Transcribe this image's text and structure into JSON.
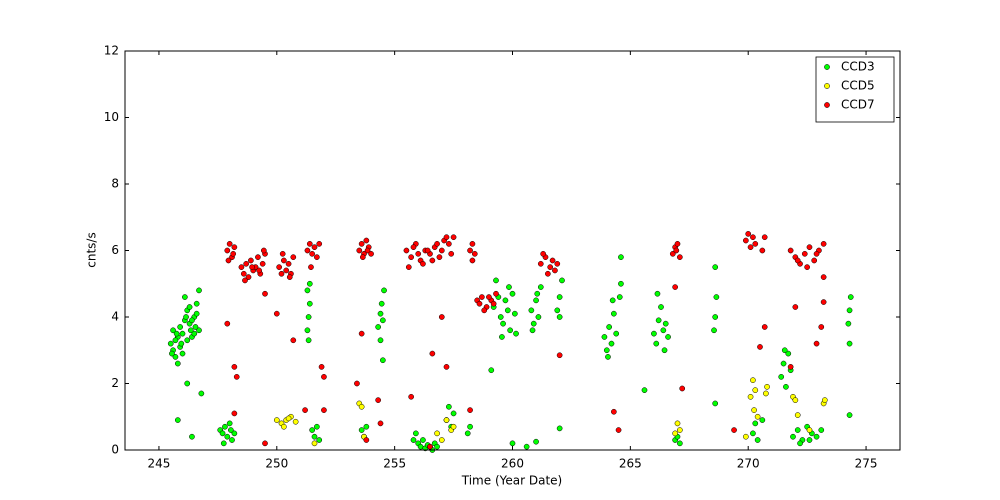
{
  "chart_data": {
    "type": "scatter",
    "xlabel": "Time (Year Date)",
    "ylabel": "cnts/s",
    "xlim": [
      243.56,
      276.44
    ],
    "xticks": [
      245,
      250,
      255,
      260,
      265,
      270,
      275
    ],
    "ylim": [
      0,
      12
    ],
    "yticks": [
      0,
      2,
      4,
      6,
      8,
      10,
      12
    ],
    "grid": false,
    "legend": "upper right",
    "series": [
      {
        "name": "CCD3",
        "color": "#00ff00",
        "x": [
          245.5,
          245.6,
          245.7,
          245.8,
          245.9,
          246.0,
          245.6,
          245.7,
          245.8,
          245.9,
          246.0,
          246.1,
          246.2,
          246.3,
          246.4,
          246.5,
          246.6,
          246.7,
          246.1,
          246.2,
          246.3,
          246.4,
          246.5,
          246.6,
          245.55,
          245.75,
          245.95,
          246.15,
          246.35,
          246.55,
          245.8,
          246.2,
          246.4,
          246.8,
          246.7,
          247.6,
          247.7,
          247.8,
          247.9,
          248.0,
          248.1,
          248.2,
          247.75,
          248.05,
          251.3,
          251.35,
          251.4,
          251.3,
          251.35,
          251.4,
          251.5,
          251.6,
          251.7,
          251.8,
          254.3,
          254.4,
          254.45,
          254.5,
          254.55,
          254.4,
          254.5,
          253.6,
          253.7,
          253.8,
          255.8,
          255.9,
          256.0,
          256.1,
          256.2,
          256.3,
          256.4,
          256.5,
          256.6,
          256.7,
          256.8,
          257.2,
          257.3,
          257.4,
          257.5,
          258.1,
          258.2,
          259.2,
          259.4,
          259.5,
          259.6,
          259.7,
          259.8,
          259.9,
          260.0,
          260.1,
          259.3,
          259.55,
          259.85,
          260.15,
          260.8,
          260.9,
          261.0,
          261.1,
          261.2,
          260.85,
          261.05,
          261.9,
          262.0,
          262.1,
          262.0,
          263.9,
          264.0,
          264.1,
          264.2,
          264.3,
          264.4,
          264.05,
          264.25,
          264.55,
          264.6,
          264.6,
          266.0,
          266.1,
          266.2,
          266.3,
          266.4,
          266.5,
          266.6,
          266.15,
          266.45,
          266.9,
          267.0,
          267.1,
          268.55,
          268.6,
          268.65,
          268.6,
          270.2,
          270.3,
          270.4,
          270.6,
          271.4,
          271.5,
          271.6,
          271.7,
          271.8,
          271.55,
          271.9,
          272.1,
          272.3,
          272.5,
          272.7,
          272.9,
          273.1,
          272.2,
          272.6,
          274.25,
          274.3,
          274.35,
          274.3,
          274.3,
          259.1,
          260.0,
          260.6,
          261.0,
          262.0,
          268.6,
          265.6
        ],
        "values": [
          3.2,
          3.0,
          2.8,
          3.4,
          3.1,
          2.9,
          3.6,
          3.3,
          2.6,
          3.7,
          3.5,
          3.9,
          4.2,
          3.8,
          3.4,
          4.0,
          4.4,
          3.6,
          4.6,
          3.3,
          4.3,
          3.9,
          3.5,
          4.1,
          2.9,
          3.5,
          3.2,
          4.0,
          3.6,
          3.7,
          0.9,
          2.0,
          0.4,
          1.7,
          4.8,
          0.6,
          0.5,
          0.7,
          0.4,
          0.8,
          0.3,
          0.5,
          0.2,
          0.6,
          3.6,
          4.0,
          4.4,
          4.8,
          3.3,
          5.0,
          0.6,
          0.4,
          0.7,
          0.3,
          3.7,
          4.1,
          4.4,
          3.9,
          4.8,
          3.3,
          2.7,
          0.6,
          0.4,
          0.7,
          0.3,
          0.5,
          0.2,
          0.1,
          0.3,
          0.05,
          0.15,
          0.1,
          0.0,
          0.2,
          0.1,
          0.9,
          1.3,
          0.7,
          1.1,
          0.5,
          0.7,
          4.3,
          4.6,
          4.0,
          3.8,
          4.5,
          4.2,
          3.6,
          4.7,
          4.1,
          5.1,
          3.4,
          4.9,
          3.5,
          4.2,
          3.8,
          4.5,
          4.0,
          4.9,
          3.6,
          4.7,
          4.2,
          4.6,
          5.1,
          4.0,
          3.4,
          3.0,
          3.7,
          3.2,
          4.1,
          3.5,
          2.8,
          4.5,
          4.6,
          5.0,
          5.8,
          3.5,
          3.2,
          3.9,
          4.3,
          3.6,
          3.8,
          3.4,
          4.7,
          3.0,
          0.3,
          0.4,
          0.2,
          3.6,
          4.0,
          4.6,
          5.5,
          0.5,
          0.8,
          0.3,
          0.9,
          2.2,
          2.6,
          1.9,
          2.9,
          2.4,
          3.0,
          0.4,
          0.6,
          0.3,
          0.7,
          0.5,
          0.4,
          0.6,
          0.2,
          0.3,
          3.8,
          4.2,
          4.6,
          3.2,
          1.05,
          2.4,
          0.2,
          0.1,
          0.25,
          0.65,
          1.4,
          1.8
        ]
      },
      {
        "name": "CCD5",
        "color": "#ffff00",
        "x": [
          250.0,
          250.2,
          250.4,
          250.6,
          250.8,
          250.3,
          253.5,
          253.6,
          253.7,
          256.8,
          257.0,
          257.2,
          257.4,
          257.5,
          266.9,
          267.0,
          267.1,
          270.1,
          270.2,
          270.3,
          270.8,
          271.9,
          272.0,
          273.2,
          273.25,
          272.6,
          251.6,
          270.4,
          272.1,
          250.5,
          270.25,
          270.75,
          269.9
        ],
        "values": [
          0.9,
          0.8,
          0.9,
          1.0,
          0.85,
          0.7,
          1.4,
          1.3,
          0.4,
          0.5,
          0.3,
          0.9,
          0.6,
          0.7,
          0.5,
          0.8,
          0.6,
          1.6,
          2.1,
          1.8,
          1.9,
          1.6,
          1.5,
          1.4,
          1.5,
          0.6,
          0.2,
          1.0,
          1.05,
          0.95,
          1.2,
          1.7,
          0.4
        ]
      },
      {
        "name": "CCD7",
        "color": "#ff0000",
        "x": [
          247.9,
          248.0,
          248.1,
          248.2,
          247.95,
          248.15,
          248.5,
          248.6,
          248.7,
          248.8,
          248.9,
          249.0,
          249.1,
          249.2,
          249.3,
          249.4,
          249.5,
          248.65,
          248.95,
          249.25,
          249.45,
          250.1,
          250.2,
          250.3,
          250.4,
          250.5,
          250.6,
          250.7,
          250.25,
          250.55,
          251.3,
          251.4,
          251.5,
          251.6,
          251.7,
          251.8,
          251.45,
          253.5,
          253.6,
          253.7,
          253.8,
          253.9,
          254.0,
          253.65,
          253.85,
          255.5,
          255.7,
          255.9,
          256.1,
          256.3,
          256.5,
          256.7,
          256.9,
          257.1,
          257.3,
          257.5,
          255.6,
          255.8,
          256.0,
          256.2,
          256.4,
          256.6,
          256.8,
          257.0,
          257.2,
          257.4,
          258.2,
          258.3,
          258.4,
          258.3,
          258.5,
          258.7,
          258.9,
          259.1,
          259.3,
          258.6,
          258.8,
          259.0,
          259.2,
          261.2,
          261.4,
          261.6,
          261.8,
          261.3,
          261.5,
          261.7,
          261.9,
          266.8,
          266.9,
          267.0,
          267.1,
          266.95,
          269.9,
          270.0,
          270.1,
          270.2,
          270.3,
          270.6,
          270.7,
          271.8,
          272.0,
          272.2,
          272.4,
          272.6,
          272.8,
          273.0,
          273.2,
          272.1,
          272.5,
          272.9,
          248.2,
          251.2,
          252.0,
          253.8,
          254.3,
          256.5,
          264.5,
          269.4,
          254.4,
          258.2,
          255.7,
          249.5,
          247.9,
          248.2,
          248.3,
          249.5,
          250.0,
          250.7,
          251.9,
          252.0,
          253.6,
          253.4,
          256.6,
          257.0,
          257.2,
          262.0,
          264.3,
          266.9,
          267.2,
          270.7,
          270.5,
          271.8,
          272.0,
          272.9,
          273.1,
          273.2,
          273.2
        ],
        "values": [
          6.0,
          6.2,
          5.8,
          6.1,
          5.7,
          5.9,
          5.5,
          5.3,
          5.6,
          5.2,
          5.7,
          5.4,
          5.5,
          5.8,
          5.3,
          5.6,
          5.9,
          5.1,
          5.5,
          5.4,
          6.0,
          5.5,
          5.3,
          5.7,
          5.4,
          5.6,
          5.3,
          5.8,
          5.9,
          5.2,
          6.0,
          6.2,
          5.9,
          6.1,
          5.8,
          6.2,
          5.5,
          6.0,
          6.2,
          5.9,
          6.3,
          6.1,
          5.9,
          5.8,
          6.0,
          6.0,
          5.8,
          6.2,
          5.7,
          6.0,
          5.9,
          6.1,
          5.8,
          6.3,
          6.2,
          6.4,
          5.5,
          6.1,
          5.9,
          5.6,
          6.0,
          5.7,
          6.2,
          6.0,
          6.4,
          5.9,
          6.0,
          6.2,
          5.9,
          5.7,
          4.5,
          4.6,
          4.3,
          4.5,
          4.7,
          4.4,
          4.2,
          4.6,
          4.4,
          5.6,
          5.8,
          5.5,
          5.4,
          5.9,
          5.3,
          5.7,
          5.6,
          5.9,
          6.1,
          6.2,
          5.8,
          6.0,
          6.3,
          6.5,
          6.1,
          6.4,
          6.2,
          6.0,
          6.4,
          6.0,
          5.8,
          5.6,
          5.9,
          6.1,
          5.7,
          6.0,
          6.2,
          5.7,
          5.5,
          5.9,
          1.1,
          1.2,
          1.2,
          0.3,
          1.5,
          0.1,
          0.6,
          0.6,
          0.8,
          1.2,
          1.6,
          0.2,
          3.8,
          2.5,
          2.2,
          4.7,
          4.1,
          3.3,
          2.5,
          2.2,
          3.5,
          2.0,
          2.9,
          4.0,
          2.5,
          2.85,
          1.15,
          4.9,
          1.85,
          3.7,
          3.1,
          2.5,
          4.3,
          3.2,
          3.7,
          4.45,
          5.2
        ]
      }
    ]
  }
}
